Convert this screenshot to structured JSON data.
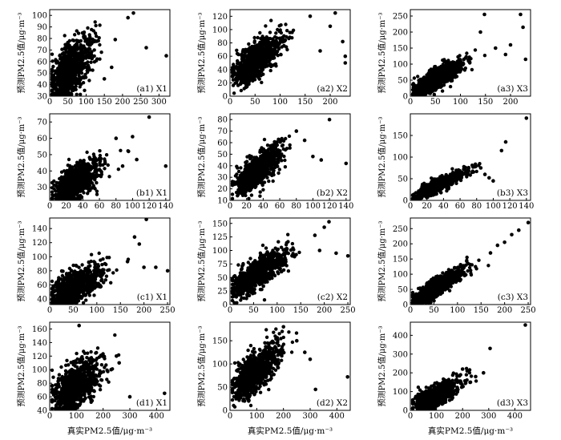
{
  "figure": {
    "ylabel": "预测PM2.5值/μg·m⁻³",
    "xlabel": "真实PM2.5值/μg·m⁻³"
  },
  "chart_data": [
    {
      "type": "scatter",
      "panel": "a1",
      "label": "(a1) X1",
      "xlim": [
        0,
        330
      ],
      "ylim": [
        30,
        105
      ],
      "xticks": [
        0,
        50,
        100,
        150,
        200,
        250,
        300
      ],
      "yticks": [
        30,
        40,
        50,
        60,
        70,
        80,
        90,
        100
      ],
      "cloud": {
        "x_center": 55,
        "x_spread": 35,
        "y_base": 35,
        "slope": 0.3,
        "y_spread": 11
      },
      "outliers": [
        [
          230,
          102
        ],
        [
          215,
          98
        ],
        [
          320,
          65
        ],
        [
          265,
          72
        ],
        [
          180,
          79
        ],
        [
          150,
          45
        ],
        [
          170,
          55
        ]
      ]
    },
    {
      "type": "scatter",
      "panel": "a2",
      "label": "(a2) X2",
      "xlim": [
        0,
        240
      ],
      "ylim": [
        0,
        130
      ],
      "xticks": [
        0,
        50,
        100,
        150,
        200
      ],
      "yticks": [
        0,
        20,
        40,
        60,
        80,
        100,
        120
      ],
      "cloud": {
        "x_center": 50,
        "x_spread": 28,
        "y_base": 25,
        "slope": 0.55,
        "y_spread": 13
      },
      "outliers": [
        [
          210,
          125
        ],
        [
          225,
          82
        ],
        [
          230,
          60
        ],
        [
          160,
          120
        ],
        [
          230,
          50
        ],
        [
          200,
          105
        ],
        [
          180,
          68
        ]
      ]
    },
    {
      "type": "scatter",
      "panel": "a3",
      "label": "(a3) X3",
      "xlim": [
        0,
        240
      ],
      "ylim": [
        0,
        270
      ],
      "xticks": [
        0,
        50,
        100,
        150,
        200
      ],
      "yticks": [
        0,
        50,
        100,
        150,
        200,
        250
      ],
      "cloud": {
        "x_center": 50,
        "x_spread": 28,
        "y_base": 10,
        "slope": 0.85,
        "y_spread": 16
      },
      "outliers": [
        [
          148,
          255
        ],
        [
          220,
          255
        ],
        [
          225,
          215
        ],
        [
          230,
          115
        ],
        [
          200,
          160
        ],
        [
          190,
          130
        ],
        [
          170,
          150
        ],
        [
          140,
          200
        ]
      ]
    },
    {
      "type": "scatter",
      "panel": "b1",
      "label": "(b1) X1",
      "xlim": [
        0,
        145
      ],
      "ylim": [
        22,
        75
      ],
      "xticks": [
        0,
        20,
        40,
        60,
        80,
        100,
        120,
        140
      ],
      "yticks": [
        30,
        40,
        50,
        60,
        70
      ],
      "cloud": {
        "x_center": 30,
        "x_spread": 16,
        "y_base": 24,
        "slope": 0.3,
        "y_spread": 5
      },
      "outliers": [
        [
          120,
          73
        ],
        [
          140,
          43
        ],
        [
          100,
          61
        ],
        [
          105,
          47
        ],
        [
          95,
          52
        ],
        [
          80,
          60
        ],
        [
          88,
          43
        ]
      ]
    },
    {
      "type": "scatter",
      "panel": "b2",
      "label": "(b2) X2",
      "xlim": [
        0,
        145
      ],
      "ylim": [
        10,
        85
      ],
      "xticks": [
        0,
        20,
        40,
        60,
        80,
        100,
        120,
        140
      ],
      "yticks": [
        10,
        20,
        30,
        40,
        50,
        60,
        70,
        80
      ],
      "cloud": {
        "x_center": 32,
        "x_spread": 16,
        "y_base": 18,
        "slope": 0.55,
        "y_spread": 7
      },
      "outliers": [
        [
          120,
          80
        ],
        [
          140,
          42
        ],
        [
          100,
          48
        ],
        [
          110,
          45
        ],
        [
          90,
          62
        ],
        [
          80,
          70
        ]
      ]
    },
    {
      "type": "scatter",
      "panel": "b3",
      "label": "(b3) X3",
      "xlim": [
        0,
        145
      ],
      "ylim": [
        0,
        200
      ],
      "xticks": [
        0,
        20,
        40,
        60,
        80,
        100,
        120,
        140
      ],
      "yticks": [
        0,
        50,
        100,
        150
      ],
      "cloud": {
        "x_center": 32,
        "x_spread": 16,
        "y_base": 5,
        "slope": 0.9,
        "y_spread": 7
      },
      "outliers": [
        [
          140,
          190
        ],
        [
          115,
          135
        ],
        [
          110,
          115
        ],
        [
          100,
          45
        ],
        [
          95,
          52
        ],
        [
          90,
          60
        ],
        [
          85,
          75
        ]
      ]
    },
    {
      "type": "scatter",
      "panel": "c1",
      "label": "(c1) X1",
      "xlim": [
        0,
        255
      ],
      "ylim": [
        32,
        155
      ],
      "xticks": [
        0,
        50,
        100,
        150,
        200,
        250
      ],
      "yticks": [
        40,
        60,
        80,
        100,
        120,
        140
      ],
      "cloud": {
        "x_center": 48,
        "x_spread": 30,
        "y_base": 38,
        "slope": 0.35,
        "y_spread": 12
      },
      "outliers": [
        [
          205,
          153
        ],
        [
          180,
          128
        ],
        [
          225,
          85
        ],
        [
          250,
          80
        ],
        [
          200,
          85
        ],
        [
          190,
          118
        ],
        [
          165,
          93
        ]
      ]
    },
    {
      "type": "scatter",
      "panel": "c2",
      "label": "(c2) X2",
      "xlim": [
        0,
        255
      ],
      "ylim": [
        0,
        160
      ],
      "xticks": [
        0,
        50,
        100,
        150,
        200,
        250
      ],
      "yticks": [
        0,
        25,
        50,
        75,
        100,
        125,
        150
      ],
      "cloud": {
        "x_center": 55,
        "x_spread": 32,
        "y_base": 25,
        "slope": 0.55,
        "y_spread": 13
      },
      "outliers": [
        [
          210,
          153
        ],
        [
          250,
          90
        ],
        [
          225,
          95
        ],
        [
          200,
          143
        ],
        [
          180,
          128
        ],
        [
          190,
          100
        ]
      ]
    },
    {
      "type": "scatter",
      "panel": "c3",
      "label": "(c3) X3",
      "xlim": [
        0,
        255
      ],
      "ylim": [
        0,
        285
      ],
      "xticks": [
        0,
        50,
        100,
        150,
        200,
        250
      ],
      "yticks": [
        0,
        50,
        100,
        150,
        200,
        250
      ],
      "cloud": {
        "x_center": 55,
        "x_spread": 32,
        "y_base": 5,
        "slope": 0.95,
        "y_spread": 14
      },
      "outliers": [
        [
          250,
          270
        ],
        [
          230,
          245
        ],
        [
          215,
          230
        ],
        [
          200,
          205
        ],
        [
          185,
          195
        ],
        [
          170,
          170
        ]
      ]
    },
    {
      "type": "scatter",
      "panel": "d1",
      "label": "(d1) X1",
      "xlim": [
        0,
        450
      ],
      "ylim": [
        40,
        170
      ],
      "xticks": [
        0,
        100,
        200,
        300,
        400
      ],
      "yticks": [
        40,
        60,
        80,
        100,
        120,
        140,
        160
      ],
      "cloud": {
        "x_center": 90,
        "x_spread": 50,
        "y_base": 52,
        "slope": 0.25,
        "y_spread": 16
      },
      "outliers": [
        [
          430,
          65
        ],
        [
          300,
          60
        ],
        [
          260,
          110
        ],
        [
          250,
          120
        ],
        [
          230,
          100
        ],
        [
          110,
          165
        ]
      ]
    },
    {
      "type": "scatter",
      "panel": "d2",
      "label": "(d2) X2",
      "xlim": [
        0,
        450
      ],
      "ylim": [
        0,
        190
      ],
      "xticks": [
        0,
        100,
        200,
        300,
        400
      ],
      "yticks": [
        0,
        50,
        100,
        150
      ],
      "cloud": {
        "x_center": 90,
        "x_spread": 50,
        "y_base": 40,
        "slope": 0.45,
        "y_spread": 20
      },
      "outliers": [
        [
          440,
          72
        ],
        [
          300,
          110
        ],
        [
          320,
          45
        ],
        [
          280,
          125
        ],
        [
          250,
          150
        ],
        [
          200,
          180
        ]
      ]
    },
    {
      "type": "scatter",
      "panel": "d3",
      "label": "(d3) X3",
      "xlim": [
        0,
        460
      ],
      "ylim": [
        0,
        470
      ],
      "xticks": [
        0,
        100,
        200,
        300,
        400
      ],
      "yticks": [
        0,
        100,
        200,
        300,
        400
      ],
      "cloud": {
        "x_center": 90,
        "x_spread": 50,
        "y_base": 10,
        "slope": 0.7,
        "y_spread": 28
      },
      "outliers": [
        [
          440,
          455
        ],
        [
          305,
          330
        ],
        [
          280,
          200
        ],
        [
          250,
          180
        ],
        [
          230,
          150
        ],
        [
          200,
          220
        ]
      ]
    }
  ]
}
